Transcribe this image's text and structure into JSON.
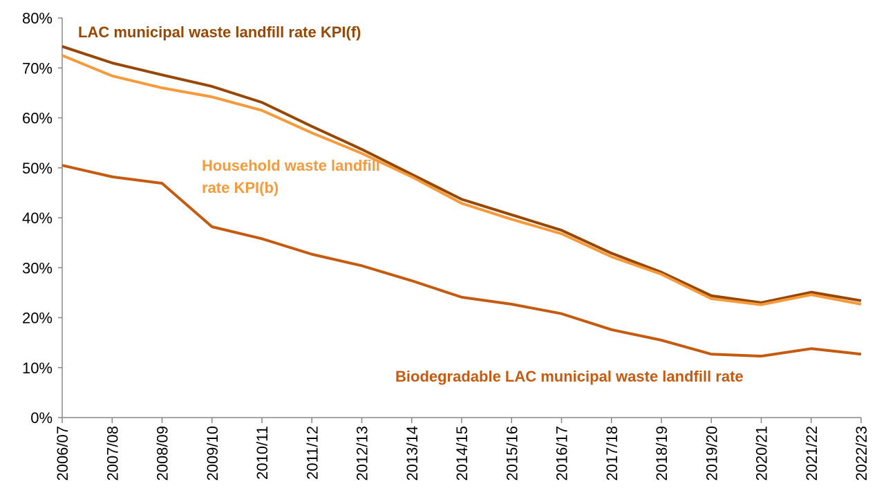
{
  "chart_data": {
    "type": "line",
    "categories": [
      "2006/07",
      "2007/08",
      "2008/09",
      "2009/10",
      "2010/11",
      "2011/12",
      "2012/13",
      "2013/14",
      "2014/15",
      "2015/16",
      "2016/17",
      "2017/18",
      "2018/19",
      "2019/20",
      "2020/21",
      "2021/22",
      "2022/23"
    ],
    "series": [
      {
        "name": "LAC municipal waste landfill rate KPI(f)",
        "color": "#974806",
        "values": [
          74.3,
          71.0,
          68.6,
          66.3,
          63.1,
          58.3,
          53.7,
          48.7,
          43.7,
          40.6,
          37.5,
          32.9,
          29.1,
          24.4,
          23.0,
          25.1,
          23.4
        ]
      },
      {
        "name": "Household waste landfill rate KPI(b)",
        "color": "#F79A3B",
        "values": [
          72.5,
          68.4,
          66.0,
          64.2,
          61.5,
          57.0,
          52.9,
          48.2,
          42.9,
          39.7,
          36.8,
          32.2,
          28.7,
          23.8,
          22.6,
          24.6,
          22.7
        ]
      },
      {
        "name": "Biodegradable LAC municipal waste landfill rate",
        "color": "#C55A11",
        "values": [
          50.5,
          48.2,
          46.9,
          38.2,
          35.8,
          32.7,
          30.4,
          27.4,
          24.1,
          22.7,
          20.8,
          17.6,
          15.5,
          12.7,
          12.3,
          13.8,
          12.7
        ]
      }
    ],
    "ylim": [
      0,
      80
    ],
    "yticks": [
      {
        "value": 0,
        "label": "0%"
      },
      {
        "value": 10,
        "label": "10%"
      },
      {
        "value": 20,
        "label": "20%"
      },
      {
        "value": 30,
        "label": "30%"
      },
      {
        "value": 40,
        "label": "40%"
      },
      {
        "value": 50,
        "label": "50%"
      },
      {
        "value": 60,
        "label": "60%"
      },
      {
        "value": 70,
        "label": "70%"
      },
      {
        "value": 80,
        "label": "80%"
      }
    ],
    "grid": false
  }
}
